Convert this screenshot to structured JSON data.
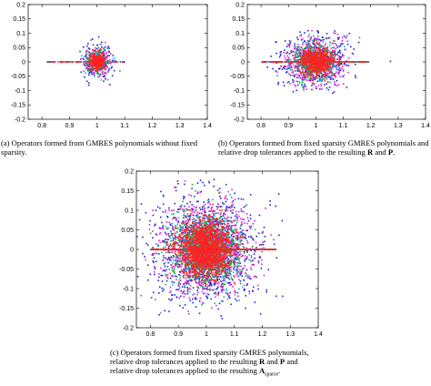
{
  "chart_data": [
    {
      "panel": "a",
      "type": "scatter",
      "xlim": [
        0.75,
        1.4
      ],
      "ylim": [
        -0.2,
        0.2
      ],
      "xticks": [
        "0.8",
        "0.9",
        "1",
        "1.1",
        "1.2",
        "1.3",
        "1.4"
      ],
      "yticks": [
        "0.2",
        "0.15",
        "0.1",
        "0.05",
        "0",
        "-0.05",
        "-0.1",
        "-0.15",
        "-0.2"
      ],
      "series_colors": [
        "#2222dd",
        "#dd22dd",
        "#00bbbb",
        "#22aa22",
        "#ff2222"
      ],
      "cluster": {
        "center": [
          1.0,
          0.0
        ],
        "spread_x": 0.018,
        "spread_y": 0.02,
        "max_abs_y": 0.1,
        "real_axis_range": [
          0.82,
          1.1
        ]
      },
      "caption": "(a) Operators formed from GMRES polynomials without fixed sparsity."
    },
    {
      "panel": "b",
      "type": "scatter",
      "xlim": [
        0.75,
        1.4
      ],
      "ylim": [
        -0.2,
        0.2
      ],
      "xticks": [
        "0.8",
        "0.9",
        "1",
        "1.1",
        "1.2",
        "1.3",
        "1.4"
      ],
      "yticks": [
        "0.2",
        "0.15",
        "0.1",
        "0.05",
        "0",
        "-0.05",
        "-0.1",
        "-0.15",
        "-0.2"
      ],
      "series_colors": [
        "#2222dd",
        "#dd22dd",
        "#00bbbb",
        "#22aa22",
        "#ff2222"
      ],
      "cluster": {
        "center": [
          1.0,
          0.0
        ],
        "spread_x": 0.04,
        "spread_y": 0.03,
        "max_abs_y": 0.11,
        "real_axis_range": [
          0.8,
          1.2
        ]
      },
      "caption_parts": [
        "(b) Operators formed from fixed sparsity GMRES polynomials and relative drop tolerances applied to the resulting ",
        "R",
        " and ",
        "P",
        "."
      ]
    },
    {
      "panel": "c",
      "type": "scatter",
      "xlim": [
        0.75,
        1.4
      ],
      "ylim": [
        -0.2,
        0.2
      ],
      "xticks": [
        "0.8",
        "0.9",
        "1",
        "1.1",
        "1.2",
        "1.3",
        "1.4"
      ],
      "yticks": [
        "0.2",
        "0.15",
        "0.1",
        "0.05",
        "0",
        "-0.05",
        "-0.1",
        "-0.15",
        "-0.2"
      ],
      "series_colors": [
        "#2222dd",
        "#dd22dd",
        "#00bbbb",
        "#22aa22",
        "#ff2222"
      ],
      "cluster": {
        "center": [
          1.0,
          0.0
        ],
        "spread_x": 0.06,
        "spread_y": 0.045,
        "max_abs_y": 0.18,
        "real_axis_range": [
          0.8,
          1.25
        ]
      },
      "caption_parts": [
        "(c) Operators formed from fixed sparsity GMRES polynomials, relative drop tolerances applied to the resulting ",
        "R",
        " and ",
        "P",
        " and relative drop tolerances applied to the resulting ",
        "A",
        "sparse",
        "."
      ]
    }
  ]
}
